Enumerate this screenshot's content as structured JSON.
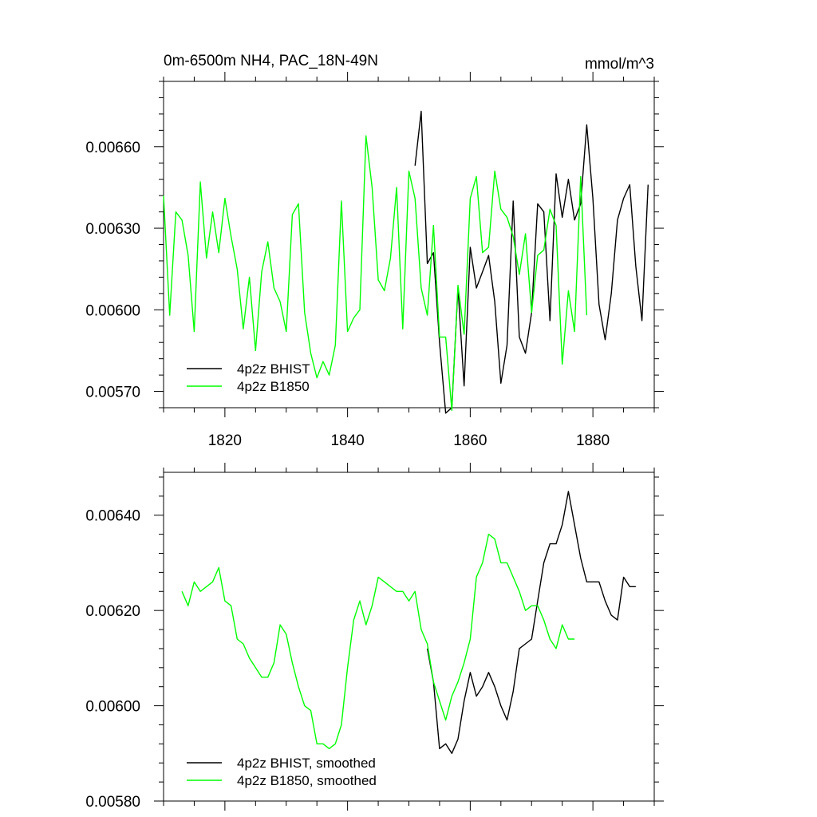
{
  "chart_data": [
    {
      "type": "line",
      "title": "0m-6500m NH4, PAC_18N-49N",
      "units": "mmol/m^3",
      "xlim": [
        1810,
        1890
      ],
      "ylim": [
        0.00564,
        0.00684
      ],
      "xticks": [
        1820,
        1840,
        1860,
        1880
      ],
      "xtick_labels": [
        "1820",
        "1840",
        "1860",
        "1880"
      ],
      "yticks": [
        0.0057,
        0.006,
        0.0063,
        0.0066
      ],
      "ytick_labels": [
        "0.00570",
        "0.00600",
        "0.00630",
        "0.00660"
      ],
      "grid": false,
      "legend_position": "bottom-left",
      "series": [
        {
          "name": "4p2z BHIST",
          "color": "#000000",
          "x": [
            1851,
            1852,
            1853,
            1854,
            1855,
            1856,
            1857,
            1858,
            1859,
            1860,
            1861,
            1862,
            1863,
            1864,
            1865,
            1866,
            1867,
            1868,
            1869,
            1870,
            1871,
            1872,
            1873,
            1874,
            1875,
            1876,
            1877,
            1878,
            1879,
            1880,
            1881,
            1882,
            1883,
            1884,
            1885,
            1886,
            1887,
            1888,
            1889
          ],
          "y": [
            0.00653,
            0.00673,
            0.00617,
            0.00621,
            0.00588,
            0.00562,
            0.00564,
            0.00608,
            0.00572,
            0.00623,
            0.00608,
            0.00614,
            0.0062,
            0.00603,
            0.00573,
            0.00587,
            0.0064,
            0.0059,
            0.00584,
            0.00599,
            0.00639,
            0.00636,
            0.00596,
            0.0065,
            0.00634,
            0.00648,
            0.00633,
            0.00639,
            0.00668,
            0.00641,
            0.00602,
            0.00589,
            0.00606,
            0.00633,
            0.00641,
            0.00646,
            0.00616,
            0.00596,
            0.00646
          ]
        },
        {
          "name": "4p2z B1850",
          "color": "#00ff00",
          "x": [
            1810,
            1811,
            1812,
            1813,
            1814,
            1815,
            1816,
            1817,
            1818,
            1819,
            1820,
            1821,
            1822,
            1823,
            1824,
            1825,
            1826,
            1827,
            1828,
            1829,
            1830,
            1831,
            1832,
            1833,
            1834,
            1835,
            1836,
            1837,
            1838,
            1839,
            1840,
            1841,
            1842,
            1843,
            1844,
            1845,
            1846,
            1847,
            1848,
            1849,
            1850,
            1851,
            1852,
            1853,
            1854,
            1855,
            1856,
            1857,
            1858,
            1859,
            1860,
            1861,
            1862,
            1863,
            1864,
            1865,
            1866,
            1867,
            1868,
            1869,
            1870,
            1871,
            1872,
            1873,
            1874,
            1875,
            1876,
            1877,
            1878,
            1879
          ],
          "y": [
            0.00642,
            0.00598,
            0.00636,
            0.00633,
            0.0062,
            0.00592,
            0.00647,
            0.00619,
            0.00636,
            0.00621,
            0.00641,
            0.00627,
            0.00615,
            0.00593,
            0.00612,
            0.00585,
            0.00614,
            0.00625,
            0.00608,
            0.00603,
            0.00592,
            0.00635,
            0.00639,
            0.00599,
            0.00584,
            0.00575,
            0.00581,
            0.00576,
            0.00587,
            0.0064,
            0.00592,
            0.00597,
            0.006,
            0.00664,
            0.00645,
            0.00611,
            0.00607,
            0.00619,
            0.00645,
            0.00593,
            0.00651,
            0.00641,
            0.00608,
            0.00598,
            0.00631,
            0.0059,
            0.0059,
            0.00563,
            0.00609,
            0.00591,
            0.00641,
            0.00649,
            0.00621,
            0.00623,
            0.00651,
            0.00637,
            0.00634,
            0.00627,
            0.00613,
            0.00628,
            0.00599,
            0.0062,
            0.00622,
            0.00637,
            0.00631,
            0.0058,
            0.00607,
            0.00592,
            0.00649,
            0.00598
          ]
        }
      ]
    },
    {
      "type": "line",
      "xlim": [
        1810,
        1890
      ],
      "ylim": [
        0.0058,
        0.00649
      ],
      "xticks": [
        1820,
        1840,
        1860,
        1880
      ],
      "yticks": [
        0.0058,
        0.006,
        0.0062,
        0.0064
      ],
      "ytick_labels": [
        "0.00580",
        "0.00600",
        "0.00620",
        "0.00640"
      ],
      "grid": false,
      "legend_position": "bottom-left",
      "series": [
        {
          "name": "4p2z BHIST, smoothed",
          "color": "#000000",
          "x": [
            1853,
            1854,
            1855,
            1856,
            1857,
            1858,
            1859,
            1860,
            1861,
            1862,
            1863,
            1864,
            1865,
            1866,
            1867,
            1868,
            1869,
            1870,
            1871,
            1872,
            1873,
            1874,
            1875,
            1876,
            1877,
            1878,
            1879,
            1880,
            1881,
            1882,
            1883,
            1884,
            1885,
            1886,
            1887
          ],
          "y": [
            0.00612,
            0.00605,
            0.00591,
            0.00592,
            0.0059,
            0.00593,
            0.00601,
            0.00607,
            0.00602,
            0.00604,
            0.00607,
            0.00604,
            0.006,
            0.00597,
            0.00603,
            0.00612,
            0.00613,
            0.00614,
            0.00622,
            0.0063,
            0.00634,
            0.00634,
            0.00638,
            0.00645,
            0.00638,
            0.00631,
            0.00626,
            0.00626,
            0.00626,
            0.00622,
            0.00619,
            0.00618,
            0.00627,
            0.00625,
            0.00625
          ]
        },
        {
          "name": "4p2z B1850, smoothed",
          "color": "#00ff00",
          "x": [
            1813,
            1814,
            1815,
            1816,
            1817,
            1818,
            1819,
            1820,
            1821,
            1822,
            1823,
            1824,
            1825,
            1826,
            1827,
            1828,
            1829,
            1830,
            1831,
            1832,
            1833,
            1834,
            1835,
            1836,
            1837,
            1838,
            1839,
            1840,
            1841,
            1842,
            1843,
            1844,
            1845,
            1846,
            1847,
            1848,
            1849,
            1850,
            1851,
            1852,
            1853,
            1854,
            1855,
            1856,
            1857,
            1858,
            1859,
            1860,
            1861,
            1862,
            1863,
            1864,
            1865,
            1866,
            1867,
            1868,
            1869,
            1870,
            1871,
            1872,
            1873,
            1874,
            1875,
            1876,
            1877
          ],
          "y": [
            0.00624,
            0.00621,
            0.00626,
            0.00624,
            0.00625,
            0.00626,
            0.00629,
            0.00622,
            0.00621,
            0.00614,
            0.00613,
            0.0061,
            0.00608,
            0.00606,
            0.00606,
            0.00609,
            0.00617,
            0.00615,
            0.00609,
            0.00604,
            0.006,
            0.00599,
            0.00592,
            0.00592,
            0.00591,
            0.00592,
            0.00596,
            0.00608,
            0.00618,
            0.00622,
            0.00617,
            0.00621,
            0.00627,
            0.00626,
            0.00625,
            0.00624,
            0.00624,
            0.00622,
            0.00624,
            0.00616,
            0.00613,
            0.00605,
            0.00601,
            0.00597,
            0.00602,
            0.00605,
            0.00609,
            0.00614,
            0.00627,
            0.0063,
            0.00636,
            0.00635,
            0.0063,
            0.0063,
            0.00627,
            0.00624,
            0.0062,
            0.00621,
            0.00621,
            0.00618,
            0.00614,
            0.00612,
            0.00617,
            0.00614,
            0.00614
          ]
        }
      ]
    }
  ]
}
